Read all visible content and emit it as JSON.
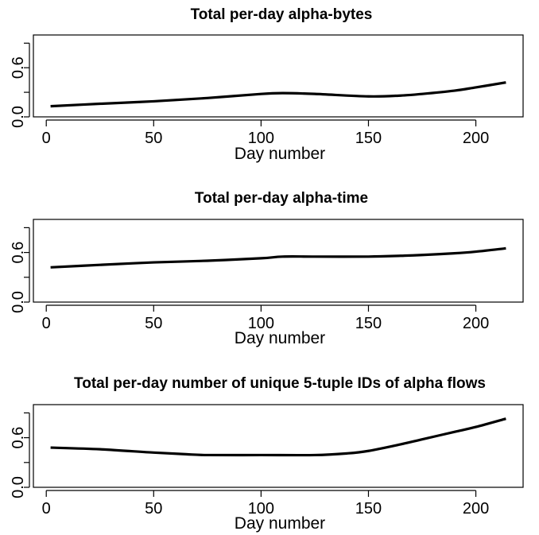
{
  "chart_data": [
    {
      "type": "line",
      "title": "Total per-day alpha-bytes",
      "xlabel": "Day number",
      "ylabel": "",
      "xlim": [
        -6,
        222
      ],
      "ylim": [
        0,
        1
      ],
      "xticks": [
        0,
        50,
        100,
        150,
        200
      ],
      "xtick_labels": [
        "0",
        "50",
        "100",
        "150",
        "200"
      ],
      "yticks": [
        0.0,
        0.6
      ],
      "ytick_labels": [
        "0.0",
        "0.6"
      ],
      "yminor": [
        0.3,
        0.9
      ],
      "x": [
        2,
        25,
        50,
        75,
        100,
        110,
        125,
        150,
        165,
        175,
        190,
        200,
        214
      ],
      "y": [
        0.13,
        0.16,
        0.19,
        0.23,
        0.28,
        0.29,
        0.28,
        0.25,
        0.26,
        0.28,
        0.32,
        0.36,
        0.42
      ]
    },
    {
      "type": "line",
      "title": "Total per-day alpha-time",
      "xlabel": "Day number",
      "ylabel": "",
      "xlim": [
        -6,
        222
      ],
      "ylim": [
        0,
        1
      ],
      "xticks": [
        0,
        50,
        100,
        150,
        200
      ],
      "xtick_labels": [
        "0",
        "50",
        "100",
        "150",
        "200"
      ],
      "yticks": [
        0.0,
        0.6
      ],
      "ytick_labels": [
        "0.0",
        "0.6"
      ],
      "yminor": [
        0.3,
        0.9
      ],
      "x": [
        2,
        25,
        50,
        75,
        100,
        110,
        125,
        150,
        165,
        175,
        190,
        200,
        214
      ],
      "y": [
        0.42,
        0.45,
        0.48,
        0.5,
        0.53,
        0.55,
        0.55,
        0.55,
        0.56,
        0.57,
        0.59,
        0.61,
        0.65
      ]
    },
    {
      "type": "line",
      "title": "Total per-day number of unique 5-tuple IDs of alpha flows",
      "xlabel": "Day number",
      "ylabel": "",
      "xlim": [
        -6,
        222
      ],
      "ylim": [
        0,
        1
      ],
      "xticks": [
        0,
        50,
        100,
        150,
        200
      ],
      "xtick_labels": [
        "0",
        "50",
        "100",
        "150",
        "200"
      ],
      "yticks": [
        0.0,
        0.6
      ],
      "ytick_labels": [
        "0.0",
        "0.6"
      ],
      "yminor": [
        0.3,
        0.9
      ],
      "x": [
        2,
        25,
        50,
        65,
        75,
        100,
        125,
        140,
        150,
        165,
        175,
        190,
        200,
        214
      ],
      "y": [
        0.48,
        0.46,
        0.42,
        0.4,
        0.39,
        0.39,
        0.39,
        0.41,
        0.44,
        0.52,
        0.58,
        0.67,
        0.73,
        0.83
      ]
    }
  ]
}
